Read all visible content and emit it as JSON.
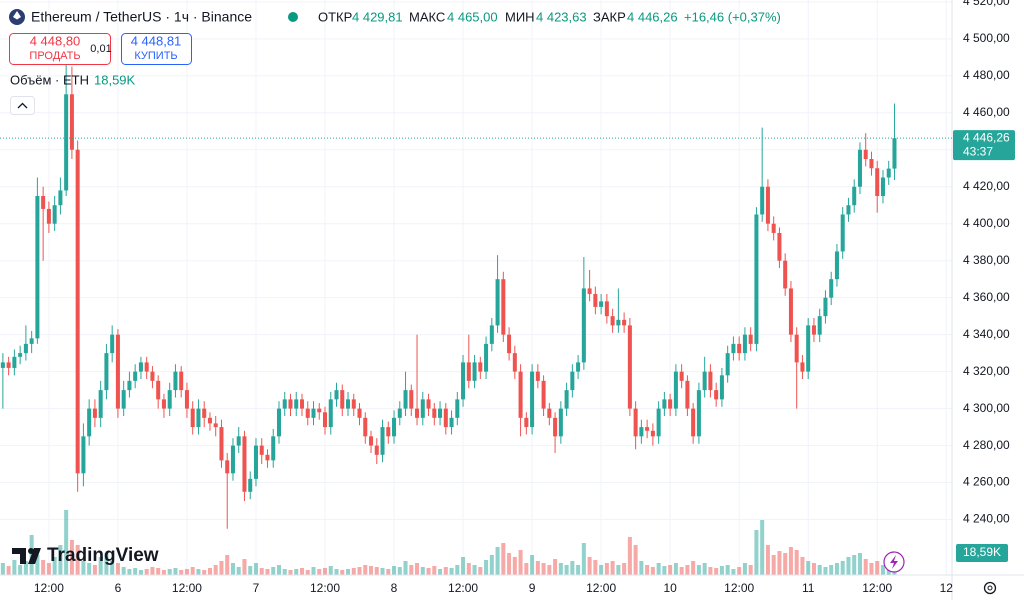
{
  "chart_data": {
    "type": "candlestick",
    "title": "Ethereum / TetherUS · 1ч · Binance",
    "ohlc": [
      {
        "name": "ОТКР",
        "label": "4 429,81"
      },
      {
        "name": "МАКС",
        "label": "4 465,00"
      },
      {
        "name": "МИН",
        "label": "4 423,63"
      },
      {
        "name": "ЗАКР",
        "label": "4 446,26"
      }
    ],
    "change": "+16,46 (+0,37%)",
    "sell": {
      "price": "4 448,80",
      "label": "ПРОДАТЬ"
    },
    "spread": "0,01",
    "buy": {
      "price": "4 448,81",
      "label": "КУПИТЬ"
    },
    "volume_title": "Объём · ETH",
    "volume_label": "18,59K",
    "price_label": "4 446,26",
    "countdown": "43:37",
    "brand": "TradingView",
    "up_color": "#26a69a",
    "down_color": "#ef5350",
    "ylim": [
      4210,
      4521
    ],
    "yticks": [
      {
        "value": 4240,
        "label": "4 240,00"
      },
      {
        "value": 4260,
        "label": "4 260,00"
      },
      {
        "value": 4280,
        "label": "4 280,00"
      },
      {
        "value": 4300,
        "label": "4 300,00"
      },
      {
        "value": 4320,
        "label": "4 320,00"
      },
      {
        "value": 4340,
        "label": "4 340,00"
      },
      {
        "value": 4360,
        "label": "4 360,00"
      },
      {
        "value": 4380,
        "label": "4 380,00"
      },
      {
        "value": 4400,
        "label": "4 400,00"
      },
      {
        "value": 4420,
        "label": "4 420,00"
      },
      {
        "value": 4440,
        "label": "4 440,00"
      },
      {
        "value": 4460,
        "label": "4 460,00"
      },
      {
        "value": 4480,
        "label": "4 480,00"
      },
      {
        "value": 4500,
        "label": "4 500,00"
      },
      {
        "value": 4520,
        "label": "4 520,00"
      }
    ],
    "xlim": [
      -0.5,
      165
    ],
    "xticks": [
      {
        "value": 8,
        "label": "12:00"
      },
      {
        "value": 20,
        "label": "6"
      },
      {
        "value": 32,
        "label": "12:00"
      },
      {
        "value": 44,
        "label": "7"
      },
      {
        "value": 56,
        "label": "12:00"
      },
      {
        "value": 68,
        "label": "8"
      },
      {
        "value": 80,
        "label": "12:00"
      },
      {
        "value": 92,
        "label": "9"
      },
      {
        "value": 104,
        "label": "12:00"
      },
      {
        "value": 116,
        "label": "10"
      },
      {
        "value": 128,
        "label": "12:00"
      },
      {
        "value": 140,
        "label": "11"
      },
      {
        "value": 152,
        "label": "12:00"
      },
      {
        "value": 164,
        "label": "12"
      }
    ],
    "volume_lim": [
      0,
      100
    ],
    "grid": true,
    "candles": [
      [
        4322,
        4330,
        4300,
        4325
      ],
      [
        4325,
        4328,
        4318,
        4322
      ],
      [
        4322,
        4332,
        4318,
        4328
      ],
      [
        4328,
        4334,
        4324,
        4330
      ],
      [
        4330,
        4345,
        4326,
        4335
      ],
      [
        4335,
        4342,
        4330,
        4338
      ],
      [
        4338,
        4425,
        4335,
        4415
      ],
      [
        4415,
        4420,
        4380,
        4408
      ],
      [
        4408,
        4412,
        4395,
        4400
      ],
      [
        4400,
        4415,
        4396,
        4410
      ],
      [
        4410,
        4425,
        4405,
        4418
      ],
      [
        4418,
        4488,
        4415,
        4470
      ],
      [
        4470,
        4485,
        4435,
        4440
      ],
      [
        4440,
        4445,
        4255,
        4265
      ],
      [
        4265,
        4292,
        4258,
        4285
      ],
      [
        4285,
        4305,
        4280,
        4300
      ],
      [
        4300,
        4305,
        4290,
        4295
      ],
      [
        4295,
        4315,
        4290,
        4310
      ],
      [
        4310,
        4335,
        4305,
        4330
      ],
      [
        4330,
        4345,
        4325,
        4340
      ],
      [
        4340,
        4343,
        4295,
        4300
      ],
      [
        4300,
        4315,
        4296,
        4310
      ],
      [
        4310,
        4320,
        4306,
        4315
      ],
      [
        4315,
        4324,
        4311,
        4320
      ],
      [
        4320,
        4328,
        4316,
        4325
      ],
      [
        4325,
        4328,
        4316,
        4320
      ],
      [
        4320,
        4323,
        4311,
        4315
      ],
      [
        4315,
        4318,
        4300,
        4305
      ],
      [
        4305,
        4308,
        4295,
        4300
      ],
      [
        4300,
        4314,
        4296,
        4310
      ],
      [
        4310,
        4324,
        4306,
        4320
      ],
      [
        4320,
        4323,
        4306,
        4310
      ],
      [
        4310,
        4314,
        4295,
        4300
      ],
      [
        4300,
        4304,
        4286,
        4290
      ],
      [
        4290,
        4305,
        4286,
        4300
      ],
      [
        4300,
        4304,
        4290,
        4295
      ],
      [
        4295,
        4298,
        4288,
        4292
      ],
      [
        4292,
        4296,
        4285,
        4290
      ],
      [
        4290,
        4294,
        4268,
        4272
      ],
      [
        4272,
        4276,
        4235,
        4265
      ],
      [
        4265,
        4284,
        4261,
        4280
      ],
      [
        4280,
        4290,
        4276,
        4285
      ],
      [
        4285,
        4288,
        4250,
        4255
      ],
      [
        4255,
        4266,
        4251,
        4262
      ],
      [
        4262,
        4284,
        4258,
        4280
      ],
      [
        4280,
        4284,
        4270,
        4275
      ],
      [
        4275,
        4278,
        4268,
        4272
      ],
      [
        4272,
        4289,
        4268,
        4285
      ],
      [
        4285,
        4304,
        4281,
        4300
      ],
      [
        4300,
        4309,
        4296,
        4305
      ],
      [
        4305,
        4308,
        4296,
        4300
      ],
      [
        4300,
        4309,
        4296,
        4305
      ],
      [
        4305,
        4308,
        4296,
        4300
      ],
      [
        4300,
        4304,
        4291,
        4295
      ],
      [
        4295,
        4304,
        4291,
        4300
      ],
      [
        4300,
        4303,
        4294,
        4298
      ],
      [
        4298,
        4301,
        4286,
        4290
      ],
      [
        4290,
        4309,
        4286,
        4305
      ],
      [
        4305,
        4314,
        4301,
        4310
      ],
      [
        4310,
        4313,
        4296,
        4300
      ],
      [
        4300,
        4309,
        4296,
        4305
      ],
      [
        4305,
        4308,
        4296,
        4300
      ],
      [
        4300,
        4303,
        4291,
        4295
      ],
      [
        4295,
        4298,
        4281,
        4285
      ],
      [
        4285,
        4288,
        4276,
        4280
      ],
      [
        4280,
        4284,
        4270,
        4275
      ],
      [
        4275,
        4294,
        4271,
        4290
      ],
      [
        4290,
        4293,
        4281,
        4285
      ],
      [
        4285,
        4299,
        4281,
        4295
      ],
      [
        4295,
        4304,
        4291,
        4300
      ],
      [
        4300,
        4320,
        4296,
        4310
      ],
      [
        4310,
        4313,
        4296,
        4300
      ],
      [
        4300,
        4340,
        4291,
        4295
      ],
      [
        4295,
        4309,
        4291,
        4305
      ],
      [
        4305,
        4308,
        4296,
        4300
      ],
      [
        4300,
        4303,
        4291,
        4295
      ],
      [
        4295,
        4304,
        4291,
        4300
      ],
      [
        4300,
        4303,
        4286,
        4290
      ],
      [
        4290,
        4299,
        4286,
        4295
      ],
      [
        4295,
        4309,
        4291,
        4305
      ],
      [
        4305,
        4329,
        4301,
        4325
      ],
      [
        4325,
        4340,
        4311,
        4315
      ],
      [
        4315,
        4329,
        4311,
        4325
      ],
      [
        4325,
        4328,
        4316,
        4320
      ],
      [
        4320,
        4339,
        4316,
        4335
      ],
      [
        4335,
        4349,
        4331,
        4345
      ],
      [
        4345,
        4383,
        4341,
        4370
      ],
      [
        4370,
        4374,
        4336,
        4340
      ],
      [
        4340,
        4344,
        4326,
        4330
      ],
      [
        4330,
        4334,
        4316,
        4320
      ],
      [
        4320,
        4324,
        4285,
        4295
      ],
      [
        4295,
        4298,
        4286,
        4290
      ],
      [
        4290,
        4324,
        4286,
        4320
      ],
      [
        4320,
        4324,
        4311,
        4315
      ],
      [
        4315,
        4318,
        4296,
        4300
      ],
      [
        4300,
        4303,
        4291,
        4295
      ],
      [
        4295,
        4298,
        4276,
        4285
      ],
      [
        4285,
        4304,
        4281,
        4300
      ],
      [
        4300,
        4314,
        4296,
        4310
      ],
      [
        4310,
        4324,
        4306,
        4320
      ],
      [
        4320,
        4329,
        4316,
        4325
      ],
      [
        4325,
        4382,
        4321,
        4365
      ],
      [
        4365,
        4375,
        4358,
        4362
      ],
      [
        4362,
        4366,
        4351,
        4355
      ],
      [
        4355,
        4362,
        4351,
        4358
      ],
      [
        4358,
        4362,
        4346,
        4350
      ],
      [
        4350,
        4354,
        4341,
        4345
      ],
      [
        4345,
        4365,
        4341,
        4348
      ],
      [
        4348,
        4352,
        4341,
        4345
      ],
      [
        4345,
        4349,
        4296,
        4300
      ],
      [
        4300,
        4304,
        4278,
        4285
      ],
      [
        4285,
        4294,
        4281,
        4290
      ],
      [
        4290,
        4294,
        4284,
        4288
      ],
      [
        4288,
        4292,
        4280,
        4285
      ],
      [
        4285,
        4304,
        4281,
        4300
      ],
      [
        4300,
        4309,
        4296,
        4305
      ],
      [
        4305,
        4308,
        4296,
        4300
      ],
      [
        4300,
        4324,
        4296,
        4320
      ],
      [
        4320,
        4324,
        4311,
        4315
      ],
      [
        4315,
        4318,
        4296,
        4300
      ],
      [
        4300,
        4303,
        4281,
        4285
      ],
      [
        4285,
        4314,
        4281,
        4310
      ],
      [
        4310,
        4328,
        4306,
        4320
      ],
      [
        4320,
        4324,
        4306,
        4310
      ],
      [
        4310,
        4314,
        4301,
        4305
      ],
      [
        4305,
        4322,
        4301,
        4318
      ],
      [
        4318,
        4334,
        4314,
        4330
      ],
      [
        4330,
        4339,
        4326,
        4335
      ],
      [
        4335,
        4339,
        4326,
        4330
      ],
      [
        4330,
        4344,
        4326,
        4340
      ],
      [
        4340,
        4344,
        4331,
        4335
      ],
      [
        4335,
        4409,
        4331,
        4405
      ],
      [
        4405,
        4452,
        4401,
        4420
      ],
      [
        4420,
        4424,
        4396,
        4400
      ],
      [
        4400,
        4404,
        4391,
        4395
      ],
      [
        4395,
        4398,
        4376,
        4380
      ],
      [
        4380,
        4384,
        4361,
        4365
      ],
      [
        4365,
        4369,
        4336,
        4340
      ],
      [
        4340,
        4344,
        4300,
        4325
      ],
      [
        4325,
        4329,
        4316,
        4320
      ],
      [
        4320,
        4349,
        4316,
        4345
      ],
      [
        4345,
        4349,
        4336,
        4340
      ],
      [
        4340,
        4354,
        4336,
        4350
      ],
      [
        4350,
        4364,
        4346,
        4360
      ],
      [
        4360,
        4374,
        4356,
        4370
      ],
      [
        4370,
        4389,
        4366,
        4385
      ],
      [
        4385,
        4409,
        4381,
        4405
      ],
      [
        4405,
        4414,
        4401,
        4410
      ],
      [
        4410,
        4424,
        4406,
        4420
      ],
      [
        4420,
        4444,
        4416,
        4440
      ],
      [
        4440,
        4449,
        4431,
        4435
      ],
      [
        4435,
        4439,
        4426,
        4430
      ],
      [
        4430,
        4434,
        4406,
        4415
      ],
      [
        4415,
        4429,
        4411,
        4425
      ],
      [
        4425,
        4434,
        4421,
        4429.81
      ],
      [
        4429.81,
        4465,
        4423.63,
        4446.26
      ]
    ],
    "volumes": [
      12,
      9,
      15,
      10,
      14,
      40,
      20,
      15,
      12,
      18,
      30,
      65,
      35,
      30,
      14,
      12,
      10,
      18,
      22,
      14,
      12,
      8,
      6,
      7,
      5,
      6,
      8,
      7,
      5,
      6,
      7,
      5,
      6,
      8,
      6,
      5,
      7,
      10,
      14,
      20,
      12,
      8,
      16,
      9,
      12,
      7,
      6,
      8,
      10,
      6,
      5,
      6,
      7,
      5,
      8,
      6,
      7,
      9,
      6,
      5,
      6,
      7,
      8,
      10,
      9,
      8,
      7,
      6,
      9,
      8,
      14,
      10,
      12,
      8,
      7,
      9,
      6,
      8,
      7,
      10,
      18,
      12,
      10,
      8,
      15,
      20,
      28,
      32,
      22,
      18,
      25,
      12,
      20,
      14,
      12,
      10,
      16,
      12,
      10,
      14,
      10,
      32,
      18,
      15,
      10,
      12,
      14,
      10,
      12,
      38,
      30,
      14,
      10,
      8,
      12,
      9,
      10,
      12,
      8,
      10,
      14,
      10,
      12,
      8,
      7,
      9,
      10,
      6,
      8,
      12,
      10,
      45,
      55,
      30,
      20,
      24,
      22,
      28,
      25,
      18,
      14,
      12,
      10,
      8,
      10,
      12,
      14,
      18,
      20,
      22,
      16,
      12,
      14,
      10,
      8,
      18.59
    ]
  }
}
